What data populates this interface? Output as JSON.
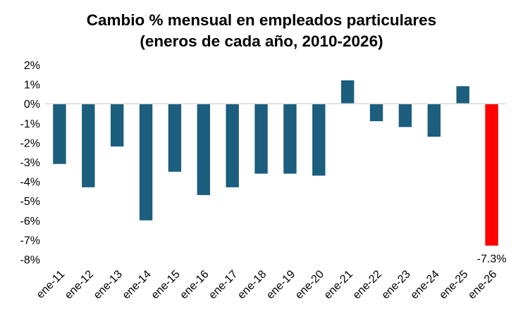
{
  "chart_data": {
    "type": "bar",
    "title_line1": "Cambio % mensual en empleados particulares",
    "title_line2": "(eneros de cada año, 2010-2026)",
    "xlabel": "",
    "ylabel": "",
    "ylim": [
      -8,
      2
    ],
    "yticks": [
      "2%",
      "1%",
      "0%",
      "-1%",
      "-2%",
      "-3%",
      "-4%",
      "-5%",
      "-6%",
      "-7%",
      "-8%"
    ],
    "categories": [
      "ene-11",
      "ene-12",
      "ene-13",
      "ene-14",
      "ene-15",
      "ene-16",
      "ene-17",
      "ene-18",
      "ene-19",
      "ene-20",
      "ene-21",
      "ene-22",
      "ene-23",
      "ene-24",
      "ene-25",
      "ene-26"
    ],
    "values": [
      -3.1,
      -4.3,
      -2.2,
      -6.0,
      -3.5,
      -4.7,
      -4.3,
      -3.6,
      -3.6,
      -3.7,
      1.2,
      -0.9,
      -1.2,
      -1.7,
      0.9,
      -7.3
    ],
    "data_labels": [
      "",
      "",
      "",
      "",
      "",
      "",
      "",
      "",
      "",
      "",
      "",
      "",
      "",
      "",
      "",
      "-7.3%"
    ],
    "bar_color": "#1b5e7e",
    "highlight_color": "#ff0000",
    "highlight_index": 15,
    "gridlines": false
  }
}
